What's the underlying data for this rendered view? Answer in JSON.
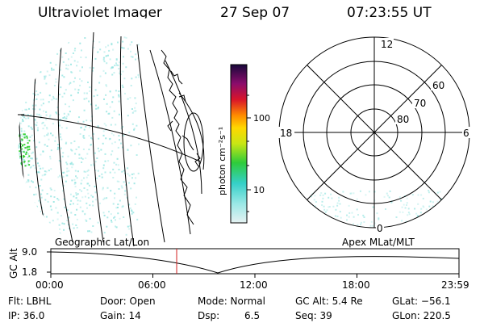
{
  "header": {
    "instrument": "Ultraviolet Imager",
    "date": "27 Sep 07",
    "time": "07:23:55 UT"
  },
  "colorbar": {
    "unit_label": "photon cm⁻²s⁻¹",
    "ticks": [
      "100",
      "10"
    ]
  },
  "polar_plot": {
    "mlt_labels": {
      "top": "12",
      "left": "18",
      "right": "6",
      "bottom": "0"
    },
    "lat_labels": [
      "60",
      "70",
      "80"
    ]
  },
  "map_panel": {
    "left_label": "Geographic Lat/Lon",
    "right_label": "Apex MLat/MLT"
  },
  "altitude_plot": {
    "ylabel": "GC Alt",
    "yticks": [
      "9.0",
      "1.8"
    ],
    "xticks": [
      "00:00",
      "06:00",
      "12:00",
      "18:00",
      "23:59"
    ],
    "current_time_hours": 7.4
  },
  "footer": {
    "filter": "Flt: LBHL",
    "door": "Door: Open",
    "mode": "Mode: Normal",
    "gc_alt": "GC Alt: 5.4 Re",
    "glat": "GLat: −56.1",
    "ip": "IP: 36.0",
    "gain": "Gain: 14",
    "dsp_label": "Dsp:",
    "dsp_value": "6.5",
    "seq": "Seq: 39",
    "glon": "GLon: 220.5"
  },
  "colors": {
    "noise": "#8fe3df",
    "noise_green": "#3cd23c",
    "cursor": "#d21e1e"
  }
}
